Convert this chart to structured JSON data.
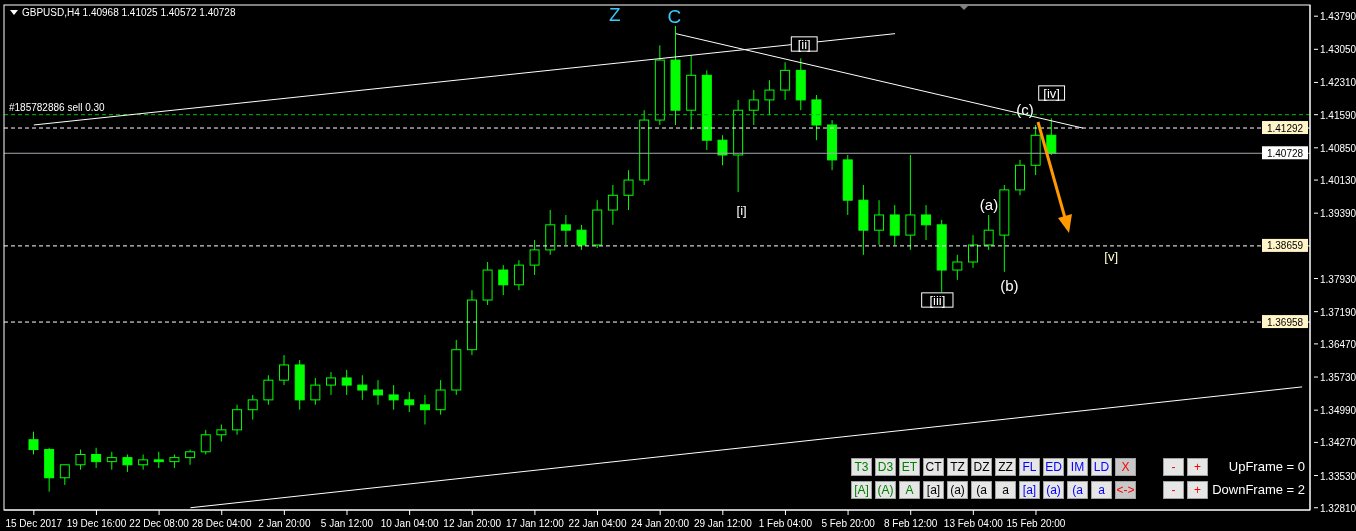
{
  "chart_data": {
    "type": "candlestick",
    "title": "GBPUSD,H4 1.40968 1.41025 1.40572 1.40728",
    "color": "#00ff00",
    "categories": [
      "15 Dec 2017",
      null,
      null,
      null,
      "19 Dec 16:00",
      null,
      null,
      null,
      "22 Dec 08:00",
      null,
      null,
      null,
      "28 Dec 04:00",
      null,
      null,
      null,
      "2 Jan 20:00",
      null,
      null,
      null,
      "5 Jan 12:00",
      null,
      null,
      null,
      "10 Jan 04:00",
      null,
      null,
      null,
      "12 Jan 20:00",
      null,
      null,
      null,
      "17 Jan 12:00",
      null,
      null,
      null,
      "22 Jan 04:00",
      null,
      null,
      null,
      "24 Jan 20:00",
      null,
      null,
      null,
      "29 Jan 12:00",
      null,
      null,
      null,
      "1 Feb 04:00",
      null,
      null,
      null,
      "5 Feb 20:00",
      null,
      null,
      null,
      "8 Feb 12:00",
      null,
      null,
      null,
      "13 Feb 04:00",
      null,
      null,
      null,
      "15 Feb 20:00",
      null,
      null,
      null,
      null,
      null,
      null,
      null,
      null,
      null,
      null,
      null,
      null,
      null,
      null,
      null,
      null,
      null
    ],
    "ohlc": [
      [
        1.3433,
        1.3451,
        1.34,
        1.3411
      ],
      [
        1.3411,
        1.3415,
        1.3317,
        1.3348
      ],
      [
        1.3348,
        1.3377,
        1.3332,
        1.3377
      ],
      [
        1.3377,
        1.3411,
        1.3366,
        1.34
      ],
      [
        1.34,
        1.3415,
        1.337,
        1.3384
      ],
      [
        1.3384,
        1.3406,
        1.3366,
        1.3393
      ],
      [
        1.3393,
        1.34,
        1.3361,
        1.3377
      ],
      [
        1.3377,
        1.34,
        1.3366,
        1.3388
      ],
      [
        1.3388,
        1.3406,
        1.337,
        1.3384
      ],
      [
        1.3384,
        1.34,
        1.337,
        1.3393
      ],
      [
        1.3393,
        1.3411,
        1.3377,
        1.3406
      ],
      [
        1.3406,
        1.3455,
        1.34,
        1.3444
      ],
      [
        1.3444,
        1.3467,
        1.3429,
        1.3455
      ],
      [
        1.3455,
        1.3511,
        1.3444,
        1.35
      ],
      [
        1.35,
        1.3533,
        1.3478,
        1.3522
      ],
      [
        1.3522,
        1.3577,
        1.3511,
        1.3566
      ],
      [
        1.3566,
        1.3622,
        1.3555,
        1.36
      ],
      [
        1.36,
        1.3611,
        1.35,
        1.3522
      ],
      [
        1.3522,
        1.3571,
        1.3511,
        1.3555
      ],
      [
        1.3555,
        1.3584,
        1.3533,
        1.3571
      ],
      [
        1.3571,
        1.3589,
        1.3533,
        1.3555
      ],
      [
        1.3555,
        1.3577,
        1.3522,
        1.3544
      ],
      [
        1.3544,
        1.3566,
        1.3511,
        1.3533
      ],
      [
        1.3533,
        1.3555,
        1.35,
        1.3522
      ],
      [
        1.3522,
        1.354,
        1.3495,
        1.3511
      ],
      [
        1.3511,
        1.3533,
        1.3467,
        1.35
      ],
      [
        1.35,
        1.3566,
        1.3489,
        1.3544
      ],
      [
        1.3544,
        1.3656,
        1.3533,
        1.3634
      ],
      [
        1.3634,
        1.3767,
        1.3622,
        1.3745
      ],
      [
        1.3745,
        1.383,
        1.3734,
        1.3812
      ],
      [
        1.3812,
        1.3823,
        1.3756,
        1.3779
      ],
      [
        1.3779,
        1.3834,
        1.3767,
        1.3823
      ],
      [
        1.3823,
        1.3879,
        1.3801,
        1.3857
      ],
      [
        1.3857,
        1.3946,
        1.3846,
        1.3913
      ],
      [
        1.3913,
        1.3935,
        1.3868,
        1.3901
      ],
      [
        1.3901,
        1.3913,
        1.3857,
        1.3868
      ],
      [
        1.3868,
        1.3968,
        1.3861,
        1.3946
      ],
      [
        1.3946,
        1.4002,
        1.3913,
        1.3979
      ],
      [
        1.3979,
        1.4035,
        1.3946,
        1.4013
      ],
      [
        1.4013,
        1.4169,
        1.4002,
        1.4147
      ],
      [
        1.4147,
        1.4314,
        1.4136,
        1.4281
      ],
      [
        1.4281,
        1.4357,
        1.4136,
        1.4169
      ],
      [
        1.4169,
        1.4292,
        1.4125,
        1.4247
      ],
      [
        1.4247,
        1.4258,
        1.408,
        1.4102
      ],
      [
        1.4102,
        1.4113,
        1.4046,
        1.4069
      ],
      [
        1.4069,
        1.4192,
        1.3986,
        1.4169
      ],
      [
        1.4169,
        1.4214,
        1.4136,
        1.4192
      ],
      [
        1.4192,
        1.4236,
        1.4158,
        1.4214
      ],
      [
        1.4214,
        1.4276,
        1.4192,
        1.4258
      ],
      [
        1.4258,
        1.4285,
        1.4169,
        1.4192
      ],
      [
        1.4192,
        1.4203,
        1.4102,
        1.4136
      ],
      [
        1.4136,
        1.4147,
        1.4035,
        1.4058
      ],
      [
        1.4058,
        1.4069,
        1.3935,
        1.3968
      ],
      [
        1.3968,
        1.4002,
        1.3846,
        1.3901
      ],
      [
        1.3901,
        1.3968,
        1.3868,
        1.3935
      ],
      [
        1.3935,
        1.3957,
        1.3868,
        1.389
      ],
      [
        1.389,
        1.4069,
        1.3857,
        1.3935
      ],
      [
        1.3935,
        1.3957,
        1.3879,
        1.3913
      ],
      [
        1.3913,
        1.3924,
        1.3763,
        1.3812
      ],
      [
        1.3812,
        1.3846,
        1.379,
        1.383
      ],
      [
        1.383,
        1.389,
        1.3817,
        1.3868
      ],
      [
        1.3868,
        1.3935,
        1.3857,
        1.3901
      ],
      [
        1.389,
        1.4002,
        1.3808,
        1.3991
      ],
      [
        1.3991,
        1.4058,
        1.3979,
        1.4046
      ],
      [
        1.4046,
        1.4136,
        1.4024,
        1.4113
      ],
      [
        1.4113,
        1.4151,
        1.4069,
        1.4073
      ],
      null,
      null,
      null,
      null,
      null,
      null,
      null,
      null,
      null,
      null,
      null,
      null,
      null,
      null,
      null,
      null
    ],
    "series": [
      {
        "type": "line",
        "color": "#ffffff",
        "values": [
          1.4136,
          null,
          null,
          null,
          null,
          null,
          null,
          null,
          null,
          null,
          null,
          null,
          null,
          null,
          null,
          null,
          null,
          null,
          null,
          null,
          null,
          null,
          null,
          null,
          null,
          null,
          null,
          null,
          null,
          null,
          null,
          null,
          null,
          null,
          null,
          null,
          null,
          null,
          null,
          null,
          null,
          null,
          null,
          null,
          null,
          null,
          null,
          null,
          null,
          null,
          null,
          null,
          null,
          null,
          null,
          1.434,
          null,
          null,
          null,
          null,
          null,
          null,
          null,
          null,
          null,
          null,
          null,
          null,
          null,
          null,
          null,
          null,
          null,
          null,
          null,
          null,
          null,
          null,
          null,
          null,
          null,
          null
        ]
      },
      {
        "type": "line",
        "color": "#ffffff",
        "values": [
          null,
          null,
          null,
          null,
          null,
          null,
          null,
          null,
          null,
          null,
          null,
          null,
          null,
          null,
          null,
          null,
          null,
          null,
          null,
          null,
          null,
          null,
          null,
          null,
          null,
          null,
          null,
          null,
          null,
          null,
          null,
          null,
          null,
          null,
          null,
          null,
          null,
          null,
          null,
          null,
          null,
          1.434,
          null,
          null,
          null,
          null,
          null,
          null,
          null,
          null,
          null,
          null,
          null,
          null,
          null,
          null,
          null,
          null,
          null,
          null,
          null,
          null,
          null,
          null,
          null,
          null,
          null,
          1.4129,
          null,
          null,
          null,
          null,
          null,
          null,
          null,
          null,
          null,
          null,
          null,
          null,
          null,
          null
        ]
      },
      {
        "type": "line",
        "color": "#ffffff",
        "values": [
          null,
          null,
          null,
          null,
          null,
          null,
          null,
          null,
          null,
          null,
          1.3281,
          null,
          null,
          null,
          null,
          null,
          null,
          null,
          null,
          null,
          null,
          null,
          null,
          null,
          null,
          null,
          null,
          null,
          null,
          null,
          null,
          null,
          null,
          null,
          null,
          null,
          null,
          null,
          null,
          null,
          null,
          null,
          null,
          null,
          null,
          null,
          null,
          null,
          null,
          null,
          null,
          null,
          null,
          null,
          null,
          null,
          null,
          null,
          null,
          null,
          null,
          null,
          null,
          null,
          null,
          null,
          null,
          null,
          null,
          null,
          null,
          null,
          null,
          null,
          null,
          null,
          null,
          null,
          null,
          null,
          null,
          1.3551
        ]
      }
    ],
    "ylim": [
      1.3276,
      1.4404
    ],
    "yticks": [
      {
        "value": 1.4379,
        "label": "1.43790"
      },
      {
        "value": 1.4305,
        "label": "1.43050"
      },
      {
        "value": 1.4231,
        "label": "1.42310"
      },
      {
        "value": 1.4159,
        "label": "1.41590"
      },
      {
        "value": 1.4085,
        "label": "1.40850"
      },
      {
        "value": 1.4013,
        "label": "1.40130"
      },
      {
        "value": 1.3939,
        "label": "1.39390"
      },
      {
        "value": 1.3793,
        "label": "1.37930"
      },
      {
        "value": 1.3719,
        "label": "1.37190"
      },
      {
        "value": 1.3647,
        "label": "1.36470"
      },
      {
        "value": 1.3573,
        "label": "1.35730"
      },
      {
        "value": 1.3499,
        "label": "1.34990"
      },
      {
        "value": 1.3427,
        "label": "1.34270"
      },
      {
        "value": 1.3353,
        "label": "1.33530"
      },
      {
        "value": 1.3281,
        "label": "1.32810"
      }
    ],
    "ref_lines": [
      {
        "axis": "y",
        "value": 1.4159,
        "label": "#185782886 sell 0.30",
        "color": "#00c000",
        "line_style": "dashed"
      },
      {
        "axis": "y",
        "value": 1.41292,
        "label": "1.41292",
        "color": "#ffffff",
        "line_style": "dashed"
      },
      {
        "axis": "y",
        "value": 1.40728,
        "label": "1.40728",
        "color": "#a0a8b0",
        "line_style": "solid"
      },
      {
        "axis": "y",
        "value": 1.38659,
        "label": "1.38659",
        "color": "#ffffff",
        "line_style": "dashed"
      },
      {
        "axis": "y",
        "value": 1.36958,
        "label": "1.36958",
        "color": "#ffffff",
        "line_style": "dashed"
      }
    ],
    "annotations": [
      "Z",
      {
        "text": "C",
        "y": 1.4357
      },
      "[ii]",
      "[i]",
      "[iii]",
      {
        "text": "(a)",
        "y": 1.3935
      },
      "(b)",
      "(c)",
      "[iv]",
      "[v]",
      "T3",
      "D3",
      "ET",
      "CT",
      "TZ",
      "DZ",
      "ZZ",
      "FL",
      "ED",
      "IM",
      "LD",
      "X",
      "[A]",
      "(A)",
      "A",
      "[a]",
      "(a)",
      "(a",
      "a",
      "[a]",
      "(a)",
      "(a",
      "a",
      "<->",
      "-",
      "+",
      "UpFrame = 0",
      "-",
      "+",
      "DownFrame = 2"
    ],
    "grid": false,
    "legend": false
  }
}
